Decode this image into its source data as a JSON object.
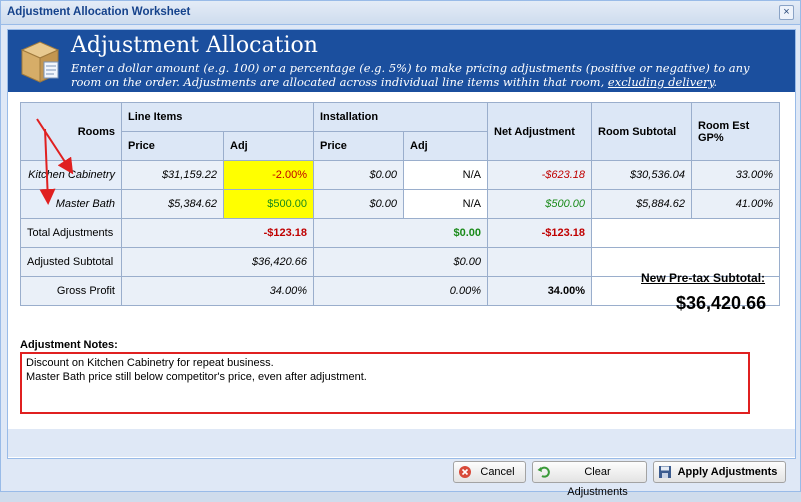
{
  "window": {
    "title": "Adjustment Allocation Worksheet"
  },
  "banner": {
    "heading": "Adjustment Allocation",
    "desc_main": "Enter a dollar amount (e.g. 100) or a percentage (e.g. 5%) to make pricing adjustments (positive or negative) to any room on the order. Adjustments are allocated across individual line items within that room, ",
    "desc_underlined": "excluding delivery",
    "desc_end": "."
  },
  "table": {
    "headers": {
      "rooms": "Rooms",
      "line_items": "Line Items",
      "installation": "Installation",
      "price": "Price",
      "adj": "Adj",
      "net_adjustment": "Net Adjustment",
      "room_subtotal": "Room Subtotal",
      "room_est_gp": "Room Est GP%"
    },
    "rows": [
      {
        "room": "Kitchen Cabinetry",
        "li_price": "$31,159.22",
        "li_adj": "-2.00%",
        "inst_price": "$0.00",
        "inst_adj": "N/A",
        "net_adj": "-$623.18",
        "subtotal": "$30,536.04",
        "gp": "33.00%"
      },
      {
        "room": "Master Bath",
        "li_price": "$5,384.62",
        "li_adj": "$500.00",
        "inst_price": "$0.00",
        "inst_adj": "N/A",
        "net_adj": "$500.00",
        "subtotal": "$5,884.62",
        "gp": "41.00%"
      }
    ],
    "totals": {
      "total_adjustments_label": "Total Adjustments",
      "total_li": "-$123.18",
      "total_inst": "$0.00",
      "total_net": "-$123.18",
      "adjusted_subtotal_label": "Adjusted Subtotal",
      "adj_sub_li": "$36,420.66",
      "adj_sub_inst": "$0.00",
      "gross_profit_label": "Gross Profit",
      "gp_li": "34.00%",
      "gp_inst": "0.00%",
      "gp_net": "34.00%"
    }
  },
  "pretax": {
    "label": "New Pre-tax Subtotal:",
    "value": "$36,420.66"
  },
  "notes": {
    "label": "Adjustment Notes:",
    "value": "Discount on Kitchen Cabinetry for repeat business.\nMaster Bath price still below competitor's price, even after adjustment."
  },
  "buttons": {
    "cancel": "Cancel",
    "clear": "Clear Adjustments",
    "apply": "Apply Adjustments"
  },
  "colors": {
    "banner": "#1b4f9e",
    "highlight": "#ffff00",
    "negative": "#c00000",
    "positive": "#1a8a1a",
    "annotation": "#e02020"
  }
}
